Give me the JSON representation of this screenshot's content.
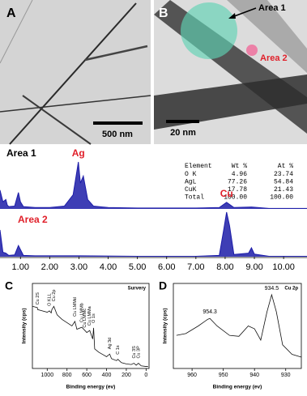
{
  "image_panels": [
    {
      "letter": "A",
      "scale_bar": "500 nm"
    },
    {
      "letter": "B",
      "scale_bar": "20 nm",
      "regions": [
        "Area 1",
        "Area 2"
      ]
    }
  ],
  "eds_table": {
    "header": [
      "Element",
      "Wt %",
      "At %"
    ],
    "rows": [
      [
        "O K",
        "4.96",
        "23.74"
      ],
      [
        "AgL",
        "77.26",
        "54.84"
      ],
      [
        "CuK",
        "17.78",
        "21.43"
      ],
      [
        "Total",
        "100.00",
        "100.00"
      ]
    ]
  },
  "chart_data": [
    {
      "type": "area",
      "title": "Area 1",
      "x": [
        0.3,
        0.4,
        0.5,
        0.55,
        0.6,
        0.8,
        0.93,
        1.0,
        1.1,
        1.5,
        2.0,
        2.5,
        2.8,
        2.98,
        3.05,
        3.15,
        3.3,
        3.5,
        4.0,
        5.0,
        6.0,
        7.0,
        7.8,
        8.05,
        8.3,
        8.9,
        9.5,
        10.8
      ],
      "series": [
        {
          "color": "#1c1ca8",
          "values": [
            40,
            15,
            20,
            8,
            5,
            6,
            35,
            15,
            5,
            3,
            3,
            6,
            30,
            100,
            55,
            70,
            20,
            6,
            3,
            2,
            2,
            2,
            3,
            14,
            3,
            4,
            1,
            1
          ]
        }
      ],
      "annotations": [
        {
          "text": "Ag",
          "x": 2.98
        },
        {
          "text": "Cu",
          "x": 8.05
        }
      ],
      "xlim": [
        0.3,
        10.8
      ],
      "ylim": [
        0,
        100
      ]
    },
    {
      "type": "area",
      "title": "Area 2",
      "x": [
        0.3,
        0.4,
        0.5,
        0.6,
        0.8,
        0.93,
        1.1,
        1.5,
        3.0,
        5.0,
        7.0,
        7.8,
        7.95,
        8.05,
        8.15,
        8.3,
        8.8,
        8.9,
        9.0,
        9.5,
        10.8
      ],
      "series": [
        {
          "color": "#1c1ca8",
          "values": [
            60,
            10,
            8,
            3,
            4,
            25,
            3,
            2,
            2,
            1,
            1,
            3,
            60,
            100,
            70,
            5,
            8,
            20,
            6,
            1,
            1
          ]
        }
      ],
      "xlim": [
        0.3,
        10.8
      ],
      "ylim": [
        0,
        100
      ],
      "xticks": [
        {
          "value": 1,
          "label": "1.00"
        },
        {
          "value": 2,
          "label": "2.00"
        },
        {
          "value": 3,
          "label": "3.00"
        },
        {
          "value": 4,
          "label": "4.00"
        },
        {
          "value": 5,
          "label": "5.00"
        },
        {
          "value": 6,
          "label": "6.00"
        },
        {
          "value": 7,
          "label": "7.00"
        },
        {
          "value": 8,
          "label": "8.00"
        },
        {
          "value": 9,
          "label": "9.00"
        },
        {
          "value": 10,
          "label": "10.00"
        }
      ]
    },
    {
      "type": "line",
      "panel": "C",
      "title": "Survery",
      "x_label": "Binding energy (ev)",
      "y_label": "Intensity (cps)",
      "x": [
        1150,
        1100,
        1097,
        1050,
        1000,
        978,
        960,
        953,
        933,
        900,
        850,
        800,
        750,
        720,
        700,
        650,
        600,
        570,
        540,
        531,
        520,
        480,
        400,
        368,
        350,
        300,
        285,
        250,
        200,
        150,
        123,
        100,
        77,
        50,
        0,
        -20
      ],
      "series": [
        {
          "color": "#111111",
          "values": [
            95,
            93,
            90,
            88,
            86,
            88,
            85,
            90,
            95,
            82,
            75,
            70,
            65,
            72,
            60,
            63,
            55,
            58,
            45,
            62,
            30,
            25,
            18,
            22,
            15,
            12,
            14,
            9,
            7,
            6,
            8,
            5,
            8,
            4,
            3,
            3
          ]
        }
      ],
      "annotations": [
        {
          "text": "Cu 2S",
          "x": 1097
        },
        {
          "text": "O KLL",
          "x": 978
        },
        {
          "text": "Cu 2p",
          "x": 933
        },
        {
          "text": "Cu LMMd",
          "x": 720
        },
        {
          "text": "Cu LMMb",
          "x": 650
        },
        {
          "text": "Cu LMMc",
          "x": 620
        },
        {
          "text": "Cu LMMa",
          "x": 570
        },
        {
          "text": "O 1s",
          "x": 531
        },
        {
          "text": "Ag 3d",
          "x": 368
        },
        {
          "text": "C 1s",
          "x": 285
        },
        {
          "text": "Cu 3S",
          "x": 123
        },
        {
          "text": "Cu 3P",
          "x": 77
        }
      ],
      "xlim": [
        1150,
        -30
      ],
      "ylim": [
        0,
        130
      ],
      "xticks": [
        1000,
        800,
        600,
        400,
        200,
        0
      ]
    },
    {
      "type": "line",
      "panel": "D",
      "title": "Cu 2p",
      "x_label": "Binding energy (ev)",
      "y_label": "Intensity (cps)",
      "x": [
        965,
        962,
        958,
        955,
        954.3,
        952,
        948,
        945,
        942,
        940,
        938,
        936,
        934.5,
        933,
        931,
        928,
        925
      ],
      "series": [
        {
          "color": "#111111",
          "values": [
            45,
            47,
            55,
            62,
            63,
            55,
            45,
            44,
            55,
            52,
            40,
            70,
            88,
            70,
            35,
            25,
            22
          ]
        }
      ],
      "annotations": [
        {
          "text": "954.3",
          "x": 954.3
        },
        {
          "text": "934.5",
          "x": 934.5
        }
      ],
      "xlim": [
        966,
        925
      ],
      "ylim": [
        10,
        100
      ],
      "xticks": [
        960,
        950,
        940,
        930
      ]
    }
  ]
}
